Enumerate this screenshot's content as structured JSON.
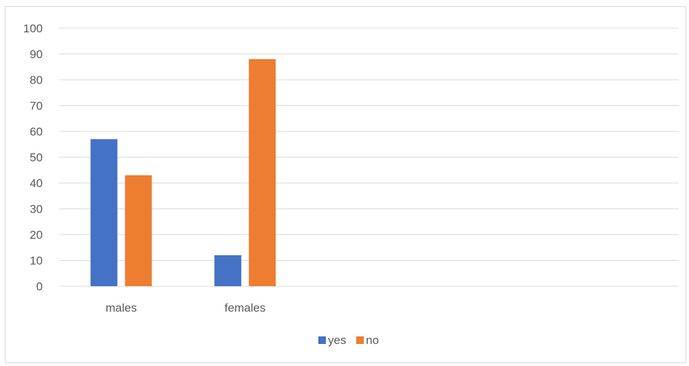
{
  "chart_data": {
    "type": "bar",
    "categories": [
      "males",
      "females",
      "",
      "",
      ""
    ],
    "series": [
      {
        "name": "yes",
        "values": [
          57,
          12,
          null,
          null,
          null
        ],
        "color": "#4472c4"
      },
      {
        "name": "no",
        "values": [
          43,
          88,
          null,
          null,
          null
        ],
        "color": "#ed7d31"
      }
    ],
    "ylim": [
      0,
      100
    ],
    "yticks": [
      0,
      10,
      20,
      30,
      40,
      50,
      60,
      70,
      80,
      90,
      100
    ],
    "grid": true,
    "legend": "bottom",
    "gridline_color": "#d9d9d9",
    "text_color": "#595959"
  }
}
